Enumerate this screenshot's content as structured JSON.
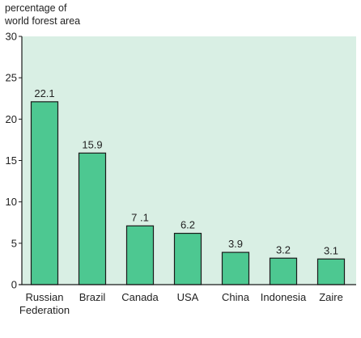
{
  "chart_data": {
    "type": "bar",
    "ylabel": "percentage of world forest area",
    "ylabel_lines": [
      "percentage of",
      "world forest area"
    ],
    "categories": [
      "Russian Federation",
      "Brazil",
      "Canada",
      "USA",
      "China",
      "Indonesia",
      "Zaire"
    ],
    "category_lines": [
      [
        "Russian",
        "Federation"
      ],
      [
        "Brazil"
      ],
      [
        "Canada"
      ],
      [
        "USA"
      ],
      [
        "China"
      ],
      [
        "Indonesia"
      ],
      [
        "Zaire"
      ]
    ],
    "values": [
      22.1,
      15.9,
      7.1,
      6.2,
      3.9,
      3.2,
      3.1
    ],
    "data_labels": [
      "22.1",
      "15.9",
      "7 .1",
      "6.2",
      "3.9",
      "3.2",
      "3.1"
    ],
    "ylim": [
      0,
      30
    ],
    "yticks": [
      0,
      5,
      10,
      15,
      20,
      25,
      30
    ],
    "grid": false,
    "colors": {
      "plot_background": "#d9efe4",
      "bar_fill": "#4dc891",
      "bar_stroke": "#1a1a1a",
      "axis": "#1a1a1a"
    }
  }
}
